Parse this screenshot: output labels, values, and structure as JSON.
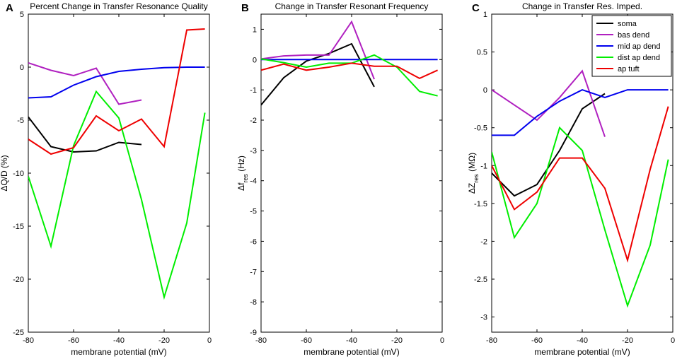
{
  "chart_data": [
    {
      "type": "line",
      "panel_label": "A",
      "title": "Percent Change in Transfer Resonance Quality",
      "xlabel": "membrane potential (mV)",
      "ylabel_main": "ΔQ/D (%)",
      "xlim": [
        -80,
        0
      ],
      "ylim": [
        -25,
        5
      ],
      "xticks": [
        -80,
        -60,
        -40,
        -20,
        0
      ],
      "yticks": [
        -25,
        -20,
        -15,
        -10,
        -5,
        0,
        5
      ],
      "legend": false,
      "series": [
        {
          "name": "soma",
          "color": "#000000",
          "x": [
            -80,
            -70,
            -60,
            -50,
            -40,
            -30
          ],
          "y": [
            -4.7,
            -7.5,
            -8.0,
            -7.9,
            -7.1,
            -7.3
          ]
        },
        {
          "name": "bas dend",
          "color": "#b020c0",
          "x": [
            -80,
            -70,
            -60,
            -50,
            -40,
            -30
          ],
          "y": [
            0.4,
            -0.3,
            -0.8,
            -0.1,
            -3.5,
            -3.1
          ]
        },
        {
          "name": "mid ap dend",
          "color": "#0000ee",
          "x": [
            -80,
            -70,
            -60,
            -50,
            -40,
            -30,
            -20,
            -10,
            -2
          ],
          "y": [
            -2.9,
            -2.8,
            -1.7,
            -0.9,
            -0.4,
            -0.2,
            -0.05,
            0,
            0
          ]
        },
        {
          "name": "dist ap dend",
          "color": "#00ee00",
          "x": [
            -80,
            -70,
            -60,
            -50,
            -40,
            -30,
            -20,
            -10,
            -2
          ],
          "y": [
            -10.3,
            -16.9,
            -7.4,
            -2.3,
            -4.8,
            -12.5,
            -21.7,
            -14.7,
            -4.3
          ]
        },
        {
          "name": "ap tuft",
          "color": "#ee0000",
          "x": [
            -80,
            -70,
            -60,
            -50,
            -40,
            -30,
            -20,
            -10,
            -2
          ],
          "y": [
            -6.8,
            -8.2,
            -7.6,
            -4.6,
            -6.0,
            -4.9,
            -7.5,
            3.5,
            3.6
          ]
        }
      ]
    },
    {
      "type": "line",
      "panel_label": "B",
      "title": "Change in Transfer Resonant Frequency",
      "xlabel": "membrane potential (mV)",
      "ylabel_main": "Δf",
      "ylabel_sub": "res",
      "ylabel_unit": " (Hz)",
      "xlim": [
        -80,
        0
      ],
      "ylim": [
        -9,
        1.5
      ],
      "xticks": [
        -80,
        -60,
        -40,
        -20,
        0
      ],
      "yticks": [
        -9,
        -8,
        -7,
        -6,
        -5,
        -4,
        -3,
        -2,
        -1,
        0,
        1
      ],
      "legend": false,
      "series": [
        {
          "name": "soma",
          "color": "#000000",
          "x": [
            -80,
            -70,
            -60,
            -50,
            -40,
            -30
          ],
          "y": [
            -1.5,
            -0.6,
            -0.05,
            0.2,
            0.52,
            -0.9
          ]
        },
        {
          "name": "bas dend",
          "color": "#b020c0",
          "x": [
            -80,
            -70,
            -60,
            -50,
            -40,
            -30
          ],
          "y": [
            0.02,
            0.12,
            0.15,
            0.15,
            1.25,
            -0.65
          ]
        },
        {
          "name": "mid ap dend",
          "color": "#0000ee",
          "x": [
            -80,
            -70,
            -60,
            -50,
            -40,
            -30,
            -20,
            -10,
            -2
          ],
          "y": [
            0,
            0,
            0,
            0,
            0,
            0,
            0,
            0,
            0
          ]
        },
        {
          "name": "dist ap dend",
          "color": "#00ee00",
          "x": [
            -80,
            -70,
            -60,
            -50,
            -40,
            -30,
            -20,
            -10,
            -2
          ],
          "y": [
            0.02,
            -0.1,
            -0.25,
            -0.12,
            -0.12,
            0.15,
            -0.25,
            -1.05,
            -1.2
          ]
        },
        {
          "name": "ap tuft",
          "color": "#ee0000",
          "x": [
            -80,
            -70,
            -60,
            -50,
            -40,
            -30,
            -20,
            -10,
            -2
          ],
          "y": [
            -0.35,
            -0.15,
            -0.35,
            -0.25,
            -0.12,
            -0.22,
            -0.22,
            -0.62,
            -0.35
          ]
        }
      ]
    },
    {
      "type": "line",
      "panel_label": "C",
      "title": "Change in Transfer Res. Imped.",
      "xlabel": "membrane potential (mV)",
      "ylabel_main": "ΔZ",
      "ylabel_sub": "res",
      "ylabel_unit": " (MΩ)",
      "xlim": [
        -80,
        0
      ],
      "ylim": [
        -3.2,
        1
      ],
      "xticks": [
        -80,
        -60,
        -40,
        -20,
        0
      ],
      "yticks": [
        -3,
        -2.5,
        -2,
        -1.5,
        -1,
        -0.5,
        0,
        0.5,
        1
      ],
      "legend": true,
      "legend_position": "top-right",
      "series": [
        {
          "name": "soma",
          "color": "#000000",
          "x": [
            -80,
            -70,
            -60,
            -50,
            -40,
            -30
          ],
          "y": [
            -1.1,
            -1.4,
            -1.25,
            -0.8,
            -0.25,
            -0.05
          ]
        },
        {
          "name": "bas dend",
          "color": "#b020c0",
          "x": [
            -80,
            -70,
            -60,
            -50,
            -40,
            -30
          ],
          "y": [
            0,
            -0.2,
            -0.4,
            -0.1,
            0.25,
            -0.62
          ]
        },
        {
          "name": "mid ap dend",
          "color": "#0000ee",
          "x": [
            -80,
            -70,
            -60,
            -50,
            -40,
            -30,
            -20,
            -10,
            -2
          ],
          "y": [
            -0.6,
            -0.6,
            -0.35,
            -0.15,
            0,
            -0.1,
            0,
            0,
            0
          ]
        },
        {
          "name": "dist ap dend",
          "color": "#00ee00",
          "x": [
            -80,
            -70,
            -60,
            -50,
            -40,
            -30,
            -20,
            -10,
            -2
          ],
          "y": [
            -0.82,
            -1.95,
            -1.5,
            -0.5,
            -0.8,
            -1.85,
            -2.85,
            -2.05,
            -0.92
          ]
        },
        {
          "name": "ap tuft",
          "color": "#ee0000",
          "x": [
            -80,
            -70,
            -60,
            -50,
            -40,
            -30,
            -20,
            -10,
            -2
          ],
          "y": [
            -1.0,
            -1.58,
            -1.35,
            -0.9,
            -0.9,
            -1.3,
            -2.25,
            -1.05,
            -0.22
          ]
        }
      ]
    }
  ]
}
